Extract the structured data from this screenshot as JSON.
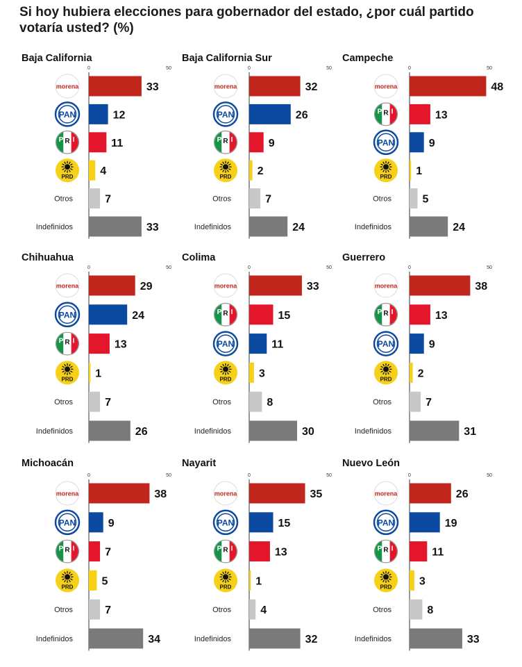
{
  "title": "Si hoy hubiera elecciones para gobernador del estado, ¿por cuál partido votaría usted? (%)",
  "party_labels": {
    "morena": "morena",
    "pan": "PAN",
    "pri": "PRI",
    "prd": "PRD",
    "otros": "Otros",
    "indefinidos": "Indefinidos"
  },
  "colors": {
    "morena": "#c0261c",
    "pan": "#0b4aa0",
    "pri": "#e3162b",
    "prd": "#f7d117",
    "otros": "#c8c8c8",
    "indefinidos": "#7a7a7a",
    "pri_green": "#159447"
  },
  "chart_data": [
    {
      "type": "bar",
      "title": "Baja California",
      "xlim": [
        0,
        50
      ],
      "ticks": [
        "0",
        "50"
      ],
      "categories": [
        "morena",
        "pan",
        "pri",
        "prd",
        "otros",
        "indefinidos"
      ],
      "values": [
        33,
        12,
        11,
        4,
        7,
        33
      ]
    },
    {
      "type": "bar",
      "title": "Baja California Sur",
      "xlim": [
        0,
        50
      ],
      "ticks": [
        "0",
        "50"
      ],
      "categories": [
        "morena",
        "pan",
        "pri",
        "prd",
        "otros",
        "indefinidos"
      ],
      "values": [
        32,
        26,
        9,
        2,
        7,
        24
      ]
    },
    {
      "type": "bar",
      "title": "Campeche",
      "xlim": [
        0,
        50
      ],
      "ticks": [
        "0",
        "50"
      ],
      "categories": [
        "morena",
        "pri",
        "pan",
        "prd",
        "otros",
        "indefinidos"
      ],
      "values": [
        48,
        13,
        9,
        1,
        5,
        24
      ]
    },
    {
      "type": "bar",
      "title": "Chihuahua",
      "xlim": [
        0,
        50
      ],
      "ticks": [
        "0",
        "50"
      ],
      "categories": [
        "morena",
        "pan",
        "pri",
        "prd",
        "otros",
        "indefinidos"
      ],
      "values": [
        29,
        24,
        13,
        1,
        7,
        26
      ]
    },
    {
      "type": "bar",
      "title": "Colima",
      "xlim": [
        0,
        50
      ],
      "ticks": [
        "0",
        "50"
      ],
      "categories": [
        "morena",
        "pri",
        "pan",
        "prd",
        "otros",
        "indefinidos"
      ],
      "values": [
        33,
        15,
        11,
        3,
        8,
        30
      ]
    },
    {
      "type": "bar",
      "title": "Guerrero",
      "xlim": [
        0,
        50
      ],
      "ticks": [
        "0",
        "50"
      ],
      "categories": [
        "morena",
        "pri",
        "pan",
        "prd",
        "otros",
        "indefinidos"
      ],
      "values": [
        38,
        13,
        9,
        2,
        7,
        31
      ]
    },
    {
      "type": "bar",
      "title": "Michoacán",
      "xlim": [
        0,
        50
      ],
      "ticks": [
        "0",
        "50"
      ],
      "categories": [
        "morena",
        "pan",
        "pri",
        "prd",
        "otros",
        "indefinidos"
      ],
      "values": [
        38,
        9,
        7,
        5,
        7,
        34
      ]
    },
    {
      "type": "bar",
      "title": "Nayarit",
      "xlim": [
        0,
        50
      ],
      "ticks": [
        "0",
        "50"
      ],
      "categories": [
        "morena",
        "pan",
        "pri",
        "prd",
        "otros",
        "indefinidos"
      ],
      "values": [
        35,
        15,
        13,
        1,
        4,
        32
      ]
    },
    {
      "type": "bar",
      "title": "Nuevo León",
      "xlim": [
        0,
        50
      ],
      "ticks": [
        "0",
        "50"
      ],
      "categories": [
        "morena",
        "pan",
        "pri",
        "prd",
        "otros",
        "indefinidos"
      ],
      "values": [
        26,
        19,
        11,
        3,
        8,
        33
      ]
    }
  ]
}
